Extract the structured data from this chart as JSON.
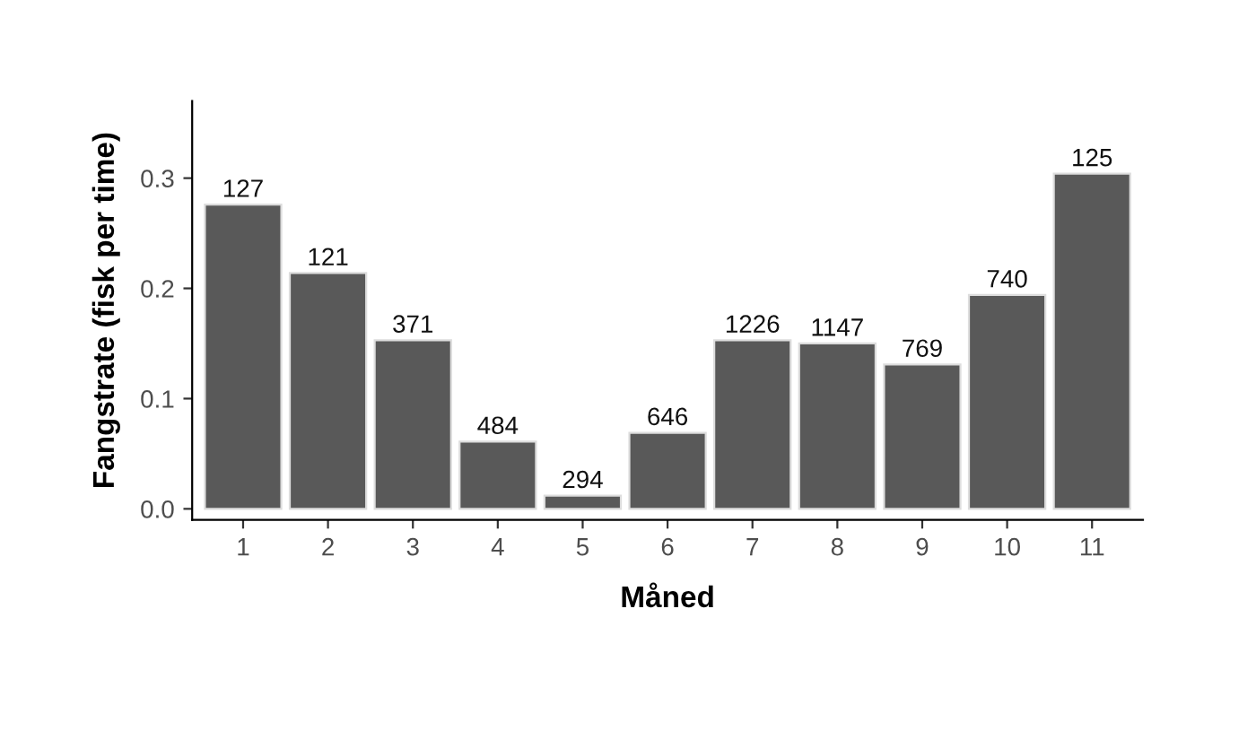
{
  "chart_data": {
    "type": "bar",
    "xlabel": "Måned",
    "ylabel": "Fangstrate (fisk per time)",
    "categories": [
      "1",
      "2",
      "3",
      "4",
      "5",
      "6",
      "7",
      "8",
      "9",
      "10",
      "11"
    ],
    "values": [
      0.276,
      0.214,
      0.153,
      0.061,
      0.012,
      0.069,
      0.153,
      0.15,
      0.131,
      0.194,
      0.304
    ],
    "annotations": [
      {
        "text": "127",
        "x": "1",
        "y": 0.276
      },
      {
        "text": "121",
        "x": "2",
        "y": 0.214
      },
      {
        "text": "371",
        "x": "3",
        "y": 0.153
      },
      {
        "text": "484",
        "x": "4",
        "y": 0.061
      },
      {
        "text": "294",
        "x": "5",
        "y": 0.012
      },
      {
        "text": "646",
        "x": "6",
        "y": 0.069
      },
      {
        "text": "1226",
        "x": "7",
        "y": 0.153
      },
      {
        "text": "1147",
        "x": "8",
        "y": 0.15
      },
      {
        "text": "769",
        "x": "9",
        "y": 0.131
      },
      {
        "text": "740",
        "x": "10",
        "y": 0.194
      },
      {
        "text": "125",
        "x": "11",
        "y": 0.304
      }
    ],
    "color": "#595959",
    "ylim": [
      -0.01,
      0.37
    ],
    "yticks": [
      {
        "value": 0,
        "label": "0.0"
      },
      {
        "value": 0.1,
        "label": "0.1"
      },
      {
        "value": 0.2,
        "label": "0.2"
      },
      {
        "value": 0.3,
        "label": "0.3"
      }
    ]
  }
}
